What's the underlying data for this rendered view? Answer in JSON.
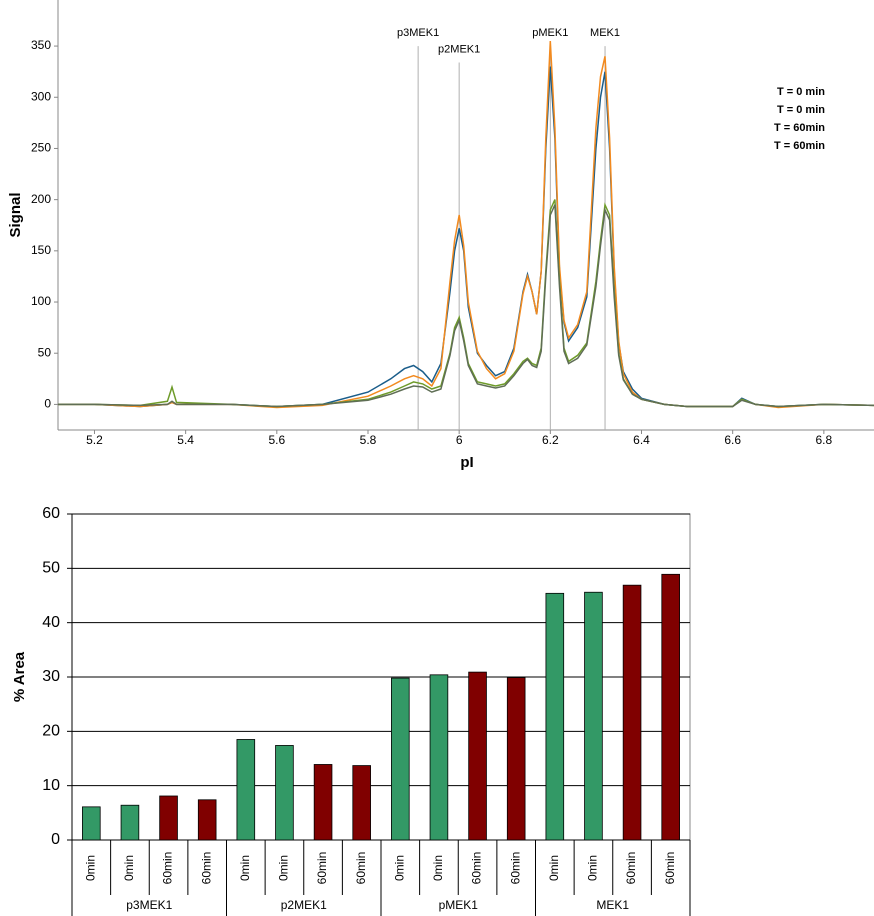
{
  "chart_data": [
    {
      "type": "line",
      "xlabel": "pI",
      "ylabel": "Signal",
      "xlim": [
        5.12,
        6.91
      ],
      "ylim": [
        -25,
        395
      ],
      "xticks": [
        5.2,
        5.4,
        5.6,
        5.8,
        6,
        6.2,
        6.4,
        6.6,
        6.8
      ],
      "yticks": [
        0,
        50,
        100,
        150,
        200,
        250,
        300,
        350
      ],
      "x": [
        5.12,
        5.2,
        5.3,
        5.36,
        5.37,
        5.38,
        5.5,
        5.6,
        5.7,
        5.8,
        5.85,
        5.88,
        5.9,
        5.92,
        5.94,
        5.96,
        5.98,
        5.99,
        6.0,
        6.01,
        6.02,
        6.04,
        6.06,
        6.08,
        6.1,
        6.12,
        6.14,
        6.15,
        6.16,
        6.17,
        6.18,
        6.19,
        6.2,
        6.21,
        6.22,
        6.23,
        6.24,
        6.26,
        6.28,
        6.3,
        6.31,
        6.32,
        6.33,
        6.34,
        6.35,
        6.36,
        6.38,
        6.4,
        6.45,
        6.5,
        6.6,
        6.62,
        6.65,
        6.7,
        6.8,
        6.91
      ],
      "series": [
        {
          "name": "T = 0 min",
          "color": "#1a5d8a",
          "values": [
            0,
            0,
            -2,
            0,
            2,
            0,
            0,
            -2,
            0,
            12,
            25,
            35,
            38,
            32,
            22,
            40,
            110,
            150,
            172,
            150,
            95,
            50,
            38,
            28,
            32,
            55,
            110,
            127,
            110,
            88,
            130,
            250,
            330,
            260,
            130,
            80,
            62,
            75,
            105,
            250,
            300,
            325,
            250,
            130,
            60,
            32,
            15,
            6,
            0,
            -2,
            -2,
            6,
            0,
            -2,
            0,
            -1
          ]
        },
        {
          "name": "T = 0 min",
          "color": "#f28a1f",
          "values": [
            0,
            0,
            -2,
            0,
            2,
            0,
            0,
            -3,
            -1,
            8,
            18,
            25,
            28,
            25,
            18,
            35,
            120,
            160,
            185,
            155,
            100,
            52,
            35,
            25,
            30,
            52,
            108,
            125,
            110,
            88,
            130,
            260,
            355,
            270,
            135,
            82,
            65,
            78,
            110,
            270,
            320,
            340,
            260,
            135,
            62,
            30,
            12,
            5,
            0,
            -2,
            -2,
            5,
            0,
            -3,
            0,
            -1
          ]
        },
        {
          "name": "T = 60min",
          "color": "#6e9b2a",
          "values": [
            0,
            0,
            -1,
            3,
            17,
            2,
            0,
            -2,
            0,
            5,
            12,
            18,
            22,
            20,
            15,
            18,
            50,
            75,
            85,
            65,
            40,
            22,
            20,
            18,
            20,
            30,
            42,
            45,
            40,
            38,
            55,
            130,
            190,
            200,
            120,
            55,
            42,
            48,
            60,
            120,
            160,
            195,
            185,
            110,
            50,
            25,
            10,
            5,
            0,
            -2,
            -2,
            5,
            0,
            -2,
            0,
            -1
          ]
        },
        {
          "name": "T = 60min",
          "color": "#5f6e55",
          "values": [
            0,
            0,
            -1,
            0,
            3,
            0,
            0,
            -2,
            0,
            4,
            10,
            15,
            18,
            17,
            12,
            15,
            48,
            72,
            82,
            62,
            38,
            20,
            18,
            16,
            18,
            28,
            40,
            44,
            38,
            36,
            52,
            125,
            185,
            195,
            115,
            52,
            40,
            45,
            58,
            115,
            155,
            190,
            180,
            105,
            48,
            24,
            10,
            5,
            0,
            -2,
            -2,
            4,
            0,
            -2,
            0,
            -1
          ]
        }
      ],
      "markers": [
        {
          "label": "p3MEK1",
          "x": 5.91,
          "y": 350
        },
        {
          "label": "p2MEK1",
          "x": 6.0,
          "y": 334
        },
        {
          "label": "pMEK1",
          "x": 6.2,
          "y": 350
        },
        {
          "label": "MEK1",
          "x": 6.32,
          "y": 350
        }
      ]
    },
    {
      "type": "bar",
      "ylabel": "% Area",
      "ylim": [
        0,
        60
      ],
      "yticks": [
        0,
        10,
        20,
        30,
        40,
        50,
        60
      ],
      "grid": true,
      "groups": [
        "p3MEK1",
        "p2MEK1",
        "pMEK1",
        "MEK1"
      ],
      "categories": [
        "0min",
        "0min",
        "60min",
        "60min",
        "0min",
        "0min",
        "60min",
        "60min",
        "0min",
        "0min",
        "60min",
        "60min",
        "0min",
        "0min",
        "60min",
        "60min"
      ],
      "values": [
        6.1,
        6.4,
        8.1,
        7.4,
        18.5,
        17.4,
        13.9,
        13.7,
        29.8,
        30.4,
        30.9,
        29.9,
        45.4,
        45.6,
        46.9,
        48.9
      ],
      "colors": [
        "#339966",
        "#339966",
        "#800000",
        "#800000",
        "#339966",
        "#339966",
        "#800000",
        "#800000",
        "#339966",
        "#339966",
        "#800000",
        "#800000",
        "#339966",
        "#339966",
        "#800000",
        "#800000"
      ]
    }
  ]
}
